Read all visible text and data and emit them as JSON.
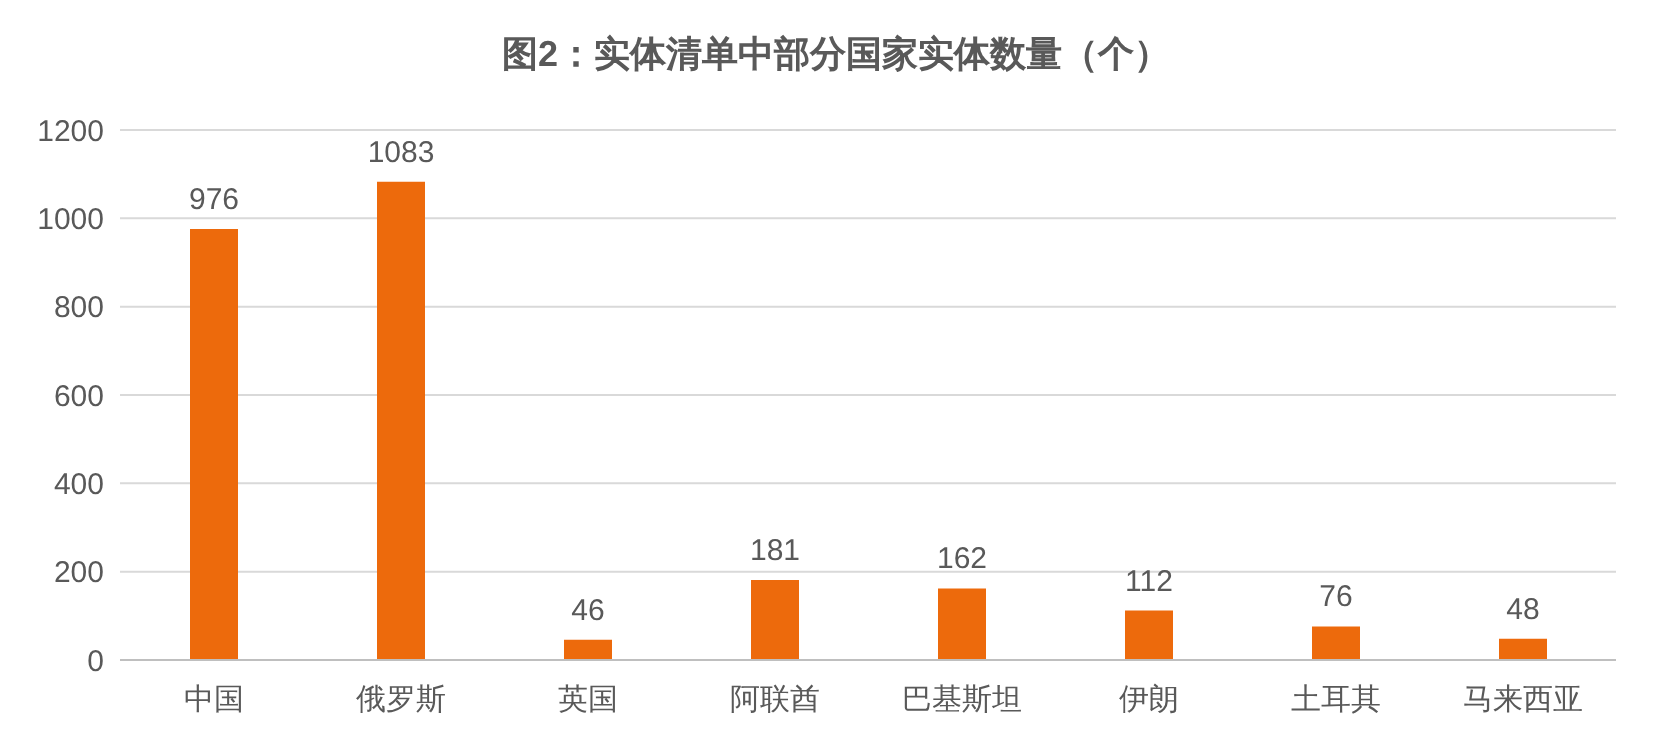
{
  "chart_data": {
    "type": "bar",
    "title": "图2：实体清单中部分国家实体数量（个）",
    "categories": [
      "中国",
      "俄罗斯",
      "英国",
      "阿联酋",
      "巴基斯坦",
      "伊朗",
      "土耳其",
      "马来西亚"
    ],
    "values": [
      976,
      1083,
      46,
      181,
      162,
      112,
      76,
      48
    ],
    "color": "#ed6a0c",
    "ylim": [
      0,
      1200
    ],
    "yticks": [
      0,
      200,
      400,
      600,
      800,
      1000,
      1200
    ],
    "grid": "y",
    "data_labels": true
  }
}
